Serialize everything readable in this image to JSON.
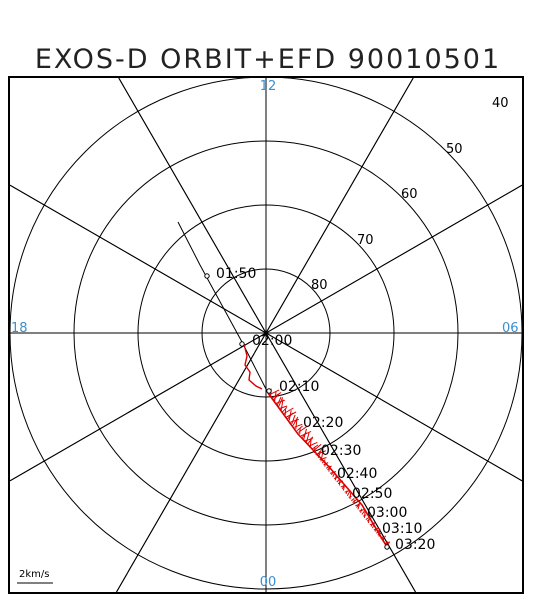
{
  "title": "EXOS-D ORBIT+EFD 90010501",
  "latitude_labels": [
    "80",
    "70",
    "60",
    "50",
    "40"
  ],
  "mlt_labels": {
    "top": "12",
    "bottom": "00",
    "left": "18",
    "right": "06"
  },
  "time_labels": [
    "01:50",
    "02:00",
    "02:10",
    "02:20",
    "02:30",
    "02:40",
    "02:50",
    "03:00",
    "03:10",
    "03:20"
  ],
  "scale_label": "2km/s",
  "colors": {
    "grid": "#000000",
    "mlt": "#3a8fd0",
    "vectors": "#dd0000"
  }
}
